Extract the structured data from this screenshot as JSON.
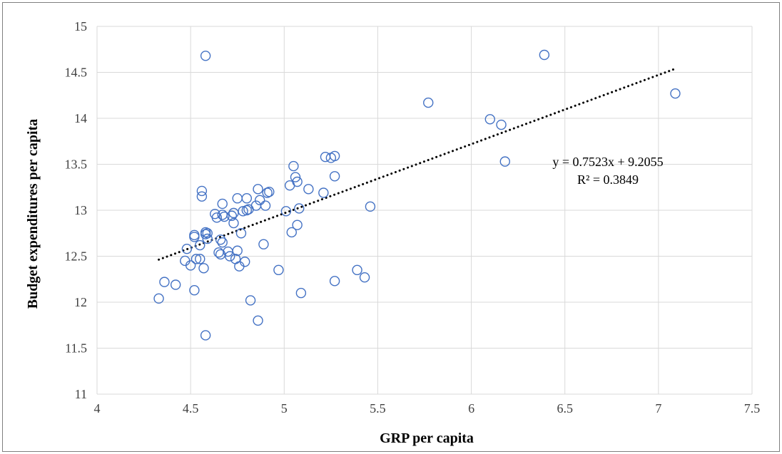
{
  "chart_data": {
    "type": "scatter",
    "title": "",
    "xlabel": "GRP per capita",
    "ylabel": "Budget expenditures per capita",
    "xlim": [
      4,
      7.5
    ],
    "ylim": [
      11,
      15
    ],
    "xticks": [
      "4",
      "4.5",
      "5",
      "5.5",
      "6",
      "6.5",
      "7",
      "7.5"
    ],
    "yticks": [
      "11",
      "11.5",
      "12",
      "12.5",
      "13",
      "13.5",
      "14",
      "14.5",
      "15"
    ],
    "grid": true,
    "legend": "none",
    "colors": {
      "marker": "#4472c4",
      "trendline": "#000000",
      "grid": "#d9d9d9"
    },
    "series": [
      {
        "points": [
          [
            4.33,
            12.04
          ],
          [
            4.36,
            12.22
          ],
          [
            4.42,
            12.19
          ],
          [
            4.48,
            12.58
          ],
          [
            4.47,
            12.45
          ],
          [
            4.5,
            12.4
          ],
          [
            4.52,
            12.13
          ],
          [
            4.52,
            12.73
          ],
          [
            4.52,
            12.71
          ],
          [
            4.53,
            12.47
          ],
          [
            4.55,
            12.47
          ],
          [
            4.55,
            12.62
          ],
          [
            4.56,
            13.21
          ],
          [
            4.56,
            13.15
          ],
          [
            4.57,
            12.37
          ],
          [
            4.58,
            12.76
          ],
          [
            4.58,
            12.74
          ],
          [
            4.59,
            12.75
          ],
          [
            4.58,
            14.68
          ],
          [
            4.58,
            11.64
          ],
          [
            4.59,
            12.69
          ],
          [
            4.63,
            12.96
          ],
          [
            4.64,
            12.92
          ],
          [
            4.65,
            12.54
          ],
          [
            4.66,
            12.52
          ],
          [
            4.66,
            12.68
          ],
          [
            4.67,
            12.65
          ],
          [
            4.67,
            12.95
          ],
          [
            4.67,
            13.07
          ],
          [
            4.68,
            12.93
          ],
          [
            4.7,
            12.55
          ],
          [
            4.71,
            12.5
          ],
          [
            4.72,
            12.94
          ],
          [
            4.73,
            12.97
          ],
          [
            4.73,
            12.86
          ],
          [
            4.74,
            12.47
          ],
          [
            4.75,
            12.56
          ],
          [
            4.75,
            13.13
          ],
          [
            4.76,
            12.39
          ],
          [
            4.77,
            12.75
          ],
          [
            4.78,
            12.99
          ],
          [
            4.79,
            12.44
          ],
          [
            4.8,
            13.0
          ],
          [
            4.8,
            13.13
          ],
          [
            4.81,
            13.01
          ],
          [
            4.82,
            12.02
          ],
          [
            4.85,
            13.05
          ],
          [
            4.86,
            11.8
          ],
          [
            4.86,
            13.23
          ],
          [
            4.87,
            13.11
          ],
          [
            4.89,
            12.63
          ],
          [
            4.9,
            13.05
          ],
          [
            4.91,
            13.19
          ],
          [
            4.92,
            13.2
          ],
          [
            4.97,
            12.35
          ],
          [
            5.01,
            12.99
          ],
          [
            5.03,
            13.27
          ],
          [
            5.04,
            12.76
          ],
          [
            5.05,
            13.48
          ],
          [
            5.06,
            13.36
          ],
          [
            5.07,
            13.31
          ],
          [
            5.07,
            12.84
          ],
          [
            5.08,
            13.02
          ],
          [
            5.09,
            12.1
          ],
          [
            5.13,
            13.23
          ],
          [
            5.21,
            13.19
          ],
          [
            5.22,
            13.58
          ],
          [
            5.25,
            13.57
          ],
          [
            5.27,
            13.59
          ],
          [
            5.27,
            13.37
          ],
          [
            5.27,
            12.23
          ],
          [
            5.39,
            12.35
          ],
          [
            5.43,
            12.27
          ],
          [
            5.46,
            13.04
          ],
          [
            5.77,
            14.17
          ],
          [
            6.1,
            13.99
          ],
          [
            6.16,
            13.93
          ],
          [
            6.18,
            13.53
          ],
          [
            6.39,
            14.69
          ],
          [
            7.09,
            14.27
          ]
        ]
      }
    ],
    "trendline": {
      "type": "linear",
      "slope": 0.7523,
      "intercept": 9.2055,
      "x_range": [
        4.33,
        7.09
      ],
      "equation_label": "y = 0.7523x + 9.2055",
      "r2_label": "R² = 0.3849"
    }
  }
}
